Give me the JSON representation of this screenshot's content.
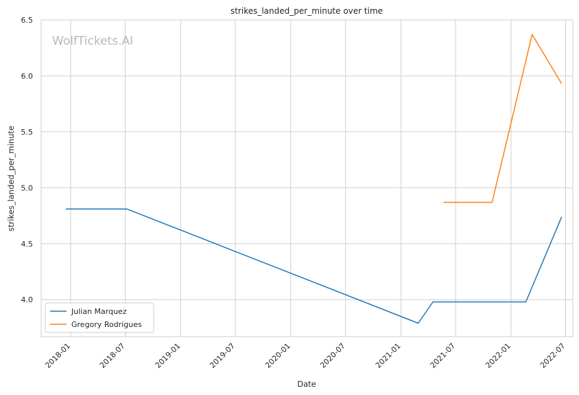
{
  "chart_data": {
    "type": "line",
    "title": "strikes_landed_per_minute over time",
    "xlabel": "Date",
    "ylabel": "strikes_landed_per_minute",
    "x_axis_type": "date",
    "xlim": [
      "2017-09-25",
      "2022-07-25"
    ],
    "ylim": [
      3.67,
      6.5
    ],
    "x_ticks": [
      "2018-01",
      "2018-07",
      "2019-01",
      "2019-07",
      "2020-01",
      "2020-07",
      "2021-01",
      "2021-07",
      "2022-01",
      "2022-07"
    ],
    "y_ticks": [
      "4.0",
      "4.5",
      "5.0",
      "5.5",
      "6.0",
      "6.5"
    ],
    "grid": true,
    "legend_position": "lower-left",
    "watermark": "WolfTickets.AI",
    "series": [
      {
        "name": "Julian Marquez",
        "color": "#1f77b4",
        "points": [
          {
            "x": "2017-12-16",
            "y": 4.81
          },
          {
            "x": "2018-07-07",
            "y": 4.81
          },
          {
            "x": "2021-02-27",
            "y": 3.79
          },
          {
            "x": "2021-04-17",
            "y": 3.98
          },
          {
            "x": "2022-02-19",
            "y": 3.98
          },
          {
            "x": "2022-06-18",
            "y": 4.74
          }
        ]
      },
      {
        "name": "Gregory Rodrigues",
        "color": "#ff7f0e",
        "points": [
          {
            "x": "2021-05-22",
            "y": 4.87
          },
          {
            "x": "2021-10-30",
            "y": 4.87
          },
          {
            "x": "2022-03-12",
            "y": 6.37
          },
          {
            "x": "2022-06-18",
            "y": 5.93
          }
        ]
      }
    ]
  }
}
